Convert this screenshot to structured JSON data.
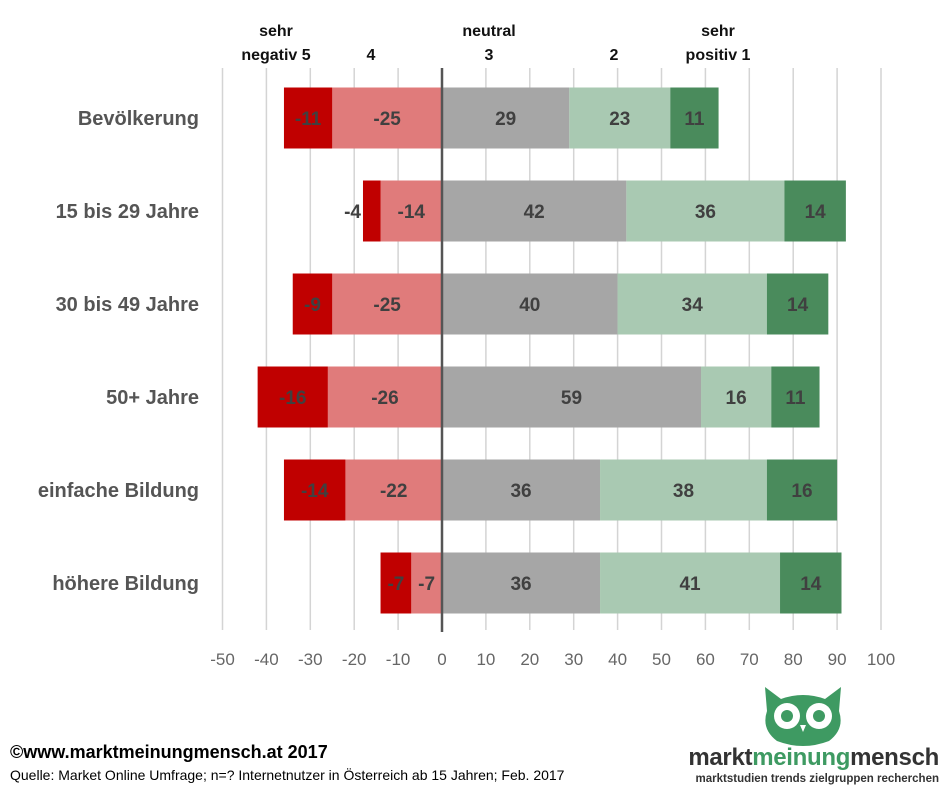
{
  "chart_data": {
    "type": "bar",
    "orientation": "horizontal",
    "stacked": "diverging",
    "categories": [
      "Bevölkerung",
      "15 bis 29 Jahre",
      "30 bis 49 Jahre",
      "50+ Jahre",
      "einfache Bildung",
      "höhere Bildung"
    ],
    "series": [
      {
        "name": "sehr negativ 5",
        "color": "#c00000",
        "values": [
          -11,
          -4,
          -9,
          -16,
          -14,
          -7
        ]
      },
      {
        "name": "4",
        "color": "#e07b7b",
        "values": [
          -25,
          -14,
          -25,
          -26,
          -22,
          -7
        ]
      },
      {
        "name": "neutral 3",
        "color": "#a6a6a6",
        "values": [
          29,
          42,
          40,
          59,
          36,
          36
        ]
      },
      {
        "name": "2",
        "color": "#a9c9b2",
        "values": [
          23,
          36,
          34,
          16,
          38,
          41
        ]
      },
      {
        "name": "sehr positiv 1",
        "color": "#4a8b5c",
        "values": [
          11,
          14,
          14,
          11,
          16,
          14
        ]
      }
    ],
    "header_labels": [
      {
        "lines": [
          "sehr",
          "negativ 5"
        ]
      },
      {
        "lines": [
          "4"
        ]
      },
      {
        "lines": [
          "neutral",
          "3"
        ]
      },
      {
        "lines": [
          "2"
        ]
      },
      {
        "lines": [
          "sehr",
          "positiv 1"
        ]
      }
    ],
    "xlim": [
      -50,
      100
    ],
    "xticks": [
      -50,
      -40,
      -30,
      -20,
      -10,
      0,
      10,
      20,
      30,
      40,
      50,
      60,
      70,
      80,
      90,
      100
    ],
    "grid": true
  },
  "footer": {
    "copyright": "©www.marktmeinungmensch.at 2017",
    "source": "Quelle: Market Online Umfrage; n=? Internetnutzer in Österreich ab 15 Jahren; Feb. 2017"
  },
  "brand": {
    "name_left": "markt",
    "name_mid": "meinung",
    "name_right": "mensch",
    "tagline": "marktstudien trends zielgruppen recherchen",
    "color": "#3e9a62"
  }
}
